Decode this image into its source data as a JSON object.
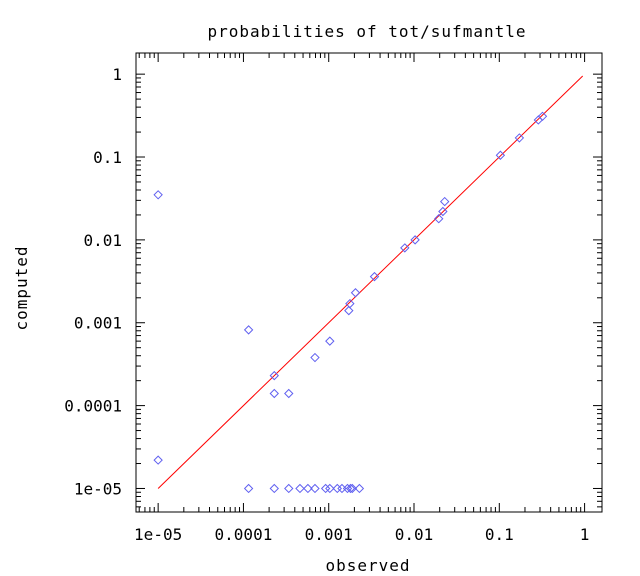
{
  "chart_data": {
    "type": "scatter",
    "title": "probabilities of tot/sufmantle",
    "xlabel": "observed",
    "ylabel": "computed",
    "xscale": "log",
    "yscale": "log",
    "xlim": [
      5.5e-06,
      1.6
    ],
    "ylim": [
      5.2e-06,
      1.8
    ],
    "xticks": [
      1e-05,
      0.0001,
      0.001,
      0.01,
      0.1,
      1
    ],
    "xtick_labels": [
      "1e-05",
      "0.0001",
      "0.001",
      "0.01",
      "0.1",
      "1"
    ],
    "yticks": [
      1e-05,
      0.0001,
      0.001,
      0.01,
      0.1,
      1
    ],
    "ytick_labels": [
      "1e-05",
      "0.0001",
      "0.001",
      "0.01",
      "0.1",
      "1"
    ],
    "grid": false,
    "legend": "none",
    "series": [
      {
        "kind": "points",
        "marker": "diamond",
        "color": "#6060f0",
        "points": [
          [
            1e-05,
            0.035
          ],
          [
            1e-05,
            2.2e-05
          ],
          [
            0.000115,
            0.00082
          ],
          [
            0.000115,
            1e-05
          ],
          [
            0.00023,
            0.00023
          ],
          [
            0.00023,
            0.00014
          ],
          [
            0.00023,
            1e-05
          ],
          [
            0.00034,
            0.00014
          ],
          [
            0.00034,
            1e-05
          ],
          [
            0.00046,
            1e-05
          ],
          [
            0.00057,
            1e-05
          ],
          [
            0.00069,
            0.00038
          ],
          [
            0.00069,
            1e-05
          ],
          [
            0.00092,
            1e-05
          ],
          [
            0.00103,
            0.0006
          ],
          [
            0.00103,
            1e-05
          ],
          [
            0.00126,
            1e-05
          ],
          [
            0.00143,
            1e-05
          ],
          [
            0.00166,
            1e-05
          ],
          [
            0.00172,
            0.0014
          ],
          [
            0.00177,
            0.0017
          ],
          [
            0.0018,
            1e-05
          ],
          [
            0.00189,
            1e-05
          ],
          [
            0.00206,
            0.0023
          ],
          [
            0.00229,
            1e-05
          ],
          [
            0.00344,
            0.0036
          ],
          [
            0.0078,
            0.008
          ],
          [
            0.0103,
            0.01
          ],
          [
            0.0195,
            0.018
          ],
          [
            0.0218,
            0.022
          ],
          [
            0.0229,
            0.029
          ],
          [
            0.103,
            0.105
          ],
          [
            0.172,
            0.17
          ],
          [
            0.287,
            0.28
          ],
          [
            0.321,
            0.31
          ]
        ]
      },
      {
        "kind": "line",
        "color": "#ff0000",
        "points": [
          [
            1e-05,
            1e-05
          ],
          [
            0.95,
            0.95
          ]
        ]
      }
    ]
  }
}
